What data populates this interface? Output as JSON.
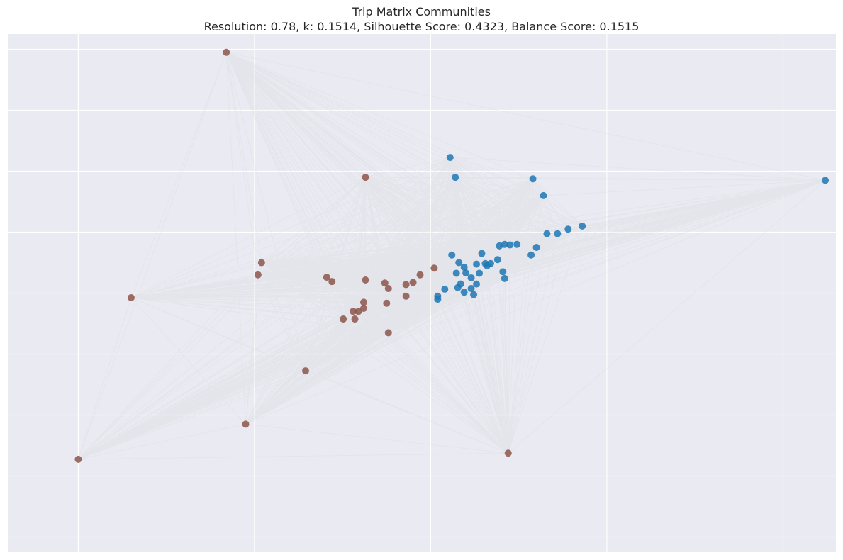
{
  "chart_data": {
    "type": "scatter",
    "title": "Trip Matrix Communities",
    "subtitle": "Resolution: 0.78, k: 0.1514, Silhouette Score: 0.4323, Balance Score: 0.1515",
    "xlabel": "",
    "ylabel": "",
    "xlim": [
      -1.2,
      1.15
    ],
    "ylim": [
      -0.85,
      0.85
    ],
    "grid": true,
    "colors": {
      "background": "#EAEAF2",
      "grid": "#FFFFFF",
      "edge": "#CCCCCC",
      "community_1": "#1F77B4",
      "community_2": "#8C564B"
    },
    "series": [
      {
        "color": "#1F77B4",
        "points": [
          [
            0.055,
            0.445
          ],
          [
            0.07,
            0.38
          ],
          [
            0.29,
            0.375
          ],
          [
            0.32,
            0.32
          ],
          [
            1.12,
            0.37
          ],
          [
            0.43,
            0.22
          ],
          [
            0.39,
            0.21
          ],
          [
            0.36,
            0.195
          ],
          [
            0.33,
            0.195
          ],
          [
            0.3,
            0.15
          ],
          [
            0.245,
            0.16
          ],
          [
            0.21,
            0.16
          ],
          [
            0.225,
            0.158
          ],
          [
            0.195,
            0.155
          ],
          [
            0.145,
            0.13
          ],
          [
            0.285,
            0.125
          ],
          [
            0.06,
            0.125
          ],
          [
            0.19,
            0.11
          ],
          [
            0.17,
            0.097
          ],
          [
            0.16,
            0.09
          ],
          [
            0.155,
            0.097
          ],
          [
            0.13,
            0.095
          ],
          [
            0.08,
            0.1
          ],
          [
            0.095,
            0.085
          ],
          [
            0.1,
            0.066
          ],
          [
            0.205,
            0.07
          ],
          [
            0.138,
            0.065
          ],
          [
            0.073,
            0.065
          ],
          [
            0.115,
            0.05
          ],
          [
            0.21,
            0.048
          ],
          [
            0.085,
            0.03
          ],
          [
            0.13,
            0.03
          ],
          [
            0.04,
            0.013
          ],
          [
            0.077,
            0.018
          ],
          [
            0.115,
            0.015
          ],
          [
            0.02,
            -0.02
          ],
          [
            0.095,
            0.003
          ],
          [
            0.02,
            -0.01
          ],
          [
            0.122,
            -0.005
          ]
        ]
      },
      {
        "color": "#8C564B",
        "points": [
          [
            -0.58,
            0.79
          ],
          [
            -0.185,
            0.38
          ],
          [
            -0.48,
            0.1
          ],
          [
            -0.49,
            0.06
          ],
          [
            -0.85,
            -0.015
          ],
          [
            -0.295,
            0.052
          ],
          [
            -0.28,
            0.038
          ],
          [
            -0.185,
            0.043
          ],
          [
            -0.13,
            0.033
          ],
          [
            -0.12,
            0.015
          ],
          [
            -0.07,
            0.028
          ],
          [
            -0.05,
            0.035
          ],
          [
            -0.03,
            0.06
          ],
          [
            0.01,
            0.082
          ],
          [
            -0.07,
            -0.01
          ],
          [
            -0.19,
            -0.03
          ],
          [
            -0.125,
            -0.033
          ],
          [
            -0.19,
            -0.05
          ],
          [
            -0.205,
            -0.06
          ],
          [
            -0.22,
            -0.06
          ],
          [
            -0.248,
            -0.085
          ],
          [
            -0.215,
            -0.085
          ],
          [
            -0.12,
            -0.13
          ],
          [
            -0.355,
            -0.255
          ],
          [
            -0.525,
            -0.43
          ],
          [
            0.22,
            -0.525
          ],
          [
            -1.0,
            -0.545
          ]
        ]
      }
    ]
  }
}
